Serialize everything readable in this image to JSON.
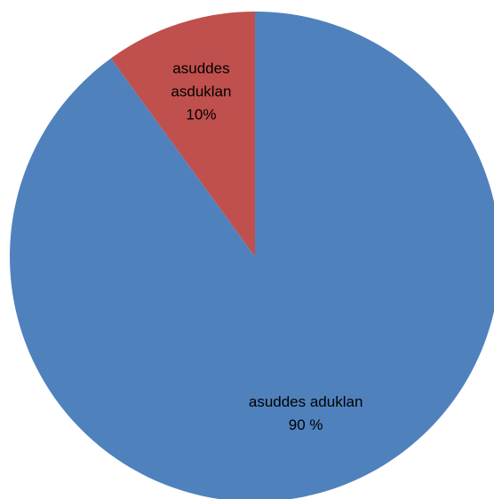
{
  "chart_data": {
    "type": "pie",
    "title": "",
    "slices": [
      {
        "label_lines": [
          "asuddes",
          "asduklan",
          "10%"
        ],
        "value": 10,
        "color": "#C0504D"
      },
      {
        "label_lines": [
          "asuddes aduklan",
          "90 %"
        ],
        "value": 90,
        "color": "#4F81BD"
      }
    ],
    "start_angle_deg": 0,
    "direction": "counterclockwise"
  }
}
